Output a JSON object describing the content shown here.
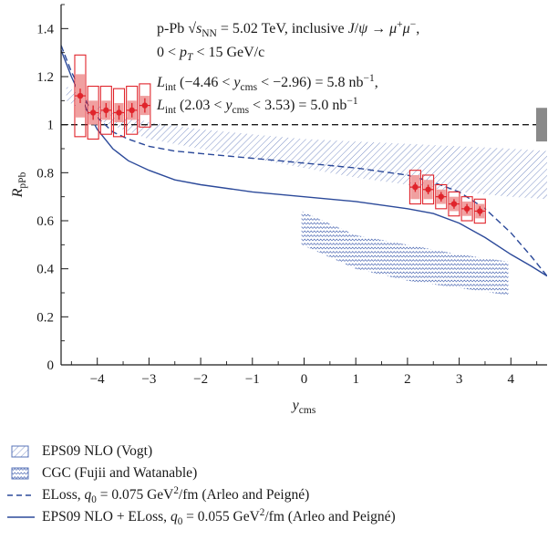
{
  "chart_data": {
    "type": "line",
    "x_axis": {
      "label": "y",
      "label_sub": "cms",
      "range": [
        -4.7,
        4.7
      ],
      "ticks": [
        -4,
        -3,
        -2,
        -1,
        0,
        1,
        2,
        3,
        4
      ],
      "tick_labels": [
        "−4",
        "−3",
        "−2",
        "−1",
        "0",
        "1",
        "2",
        "3",
        "4"
      ]
    },
    "y_axis": {
      "label": "R",
      "label_sub": "pPb",
      "range": [
        0,
        1.5
      ],
      "ticks": [
        0,
        0.2,
        0.4,
        0.6,
        0.8,
        1.0,
        1.2,
        1.4
      ],
      "tick_labels": [
        "0",
        "0.2",
        "0.4",
        "0.6",
        "0.8",
        "1",
        "1.2",
        "1.4"
      ]
    },
    "reference_line": 1.0,
    "global_uncertainty": [
      0.93,
      1.07
    ],
    "annotations": [
      {
        "parts": [
          {
            "t": "p-Pb "
          },
          {
            "t": "√s",
            "it": true
          },
          {
            "t": "NN",
            "sub": true
          },
          {
            "t": " = 5.02 TeV, inclusive "
          },
          {
            "t": "J",
            "it": true
          },
          {
            "t": "/"
          },
          {
            "t": "ψ",
            "it": true
          },
          {
            "t": " → "
          },
          {
            "t": "μ",
            "it": true
          },
          {
            "t": "+",
            "sup": true
          },
          {
            "t": "μ",
            "it": true
          },
          {
            "t": "−",
            "sup": true
          },
          {
            "t": ","
          }
        ]
      },
      {
        "parts": [
          {
            "t": "0 < "
          },
          {
            "t": "p",
            "it": true
          },
          {
            "t": "T",
            "sub": true,
            "it": true
          },
          {
            "t": " < 15 GeV/c"
          }
        ]
      },
      {
        "parts": [
          {
            "t": "L",
            "it": true
          },
          {
            "t": "int",
            "sub": true
          },
          {
            "t": " (−4.46 < "
          },
          {
            "t": "y",
            "it": true
          },
          {
            "t": "cms",
            "sub": true
          },
          {
            "t": " < −2.96) = 5.8 nb"
          },
          {
            "t": "−1",
            "sup": true
          },
          {
            "t": ","
          }
        ]
      },
      {
        "parts": [
          {
            "t": "L",
            "it": true
          },
          {
            "t": "int",
            "sub": true
          },
          {
            "t": " (2.03 < "
          },
          {
            "t": "y",
            "it": true
          },
          {
            "t": "cms",
            "sub": true
          },
          {
            "t": " < 3.53) = 5.0 nb"
          },
          {
            "t": "−1",
            "sup": true
          }
        ]
      }
    ],
    "data_backward": {
      "x": [
        -4.33,
        -4.08,
        -3.83,
        -3.58,
        -3.33,
        -3.08
      ],
      "y": [
        1.12,
        1.05,
        1.06,
        1.05,
        1.06,
        1.08
      ],
      "stat_err": [
        0.03,
        0.03,
        0.03,
        0.03,
        0.03,
        0.03
      ],
      "syst_err": [
        0.17,
        0.11,
        0.1,
        0.1,
        0.1,
        0.09
      ],
      "uncorr_err": [
        0.09,
        0.05,
        0.04,
        0.04,
        0.04,
        0.04
      ]
    },
    "data_forward": {
      "x": [
        2.15,
        2.4,
        2.65,
        2.9,
        3.15,
        3.4
      ],
      "y": [
        0.74,
        0.73,
        0.7,
        0.67,
        0.65,
        0.64
      ],
      "stat_err": [
        0.02,
        0.02,
        0.02,
        0.02,
        0.02,
        0.02
      ],
      "syst_err": [
        0.07,
        0.06,
        0.05,
        0.05,
        0.05,
        0.05
      ],
      "uncorr_err": [
        0.05,
        0.04,
        0.03,
        0.03,
        0.03,
        0.03
      ]
    },
    "bands": [
      {
        "name": "EPS09 NLO (Vogt)",
        "hatch": "diagonal",
        "x": [
          -4.6,
          -4.0,
          -3.5,
          -3.0,
          -2.0,
          -1.0,
          0.0,
          1.0,
          2.0,
          3.0,
          4.0,
          4.7
        ],
        "upper": [
          1.16,
          1.08,
          1.04,
          1.01,
          0.98,
          0.96,
          0.94,
          0.93,
          0.92,
          0.91,
          0.9,
          0.89
        ],
        "lower": [
          1.1,
          1.02,
          0.98,
          0.94,
          0.9,
          0.86,
          0.82,
          0.78,
          0.75,
          0.72,
          0.7,
          0.69
        ]
      },
      {
        "name": "CGC (Fujii and Watanable)",
        "hatch": "wave",
        "x": [
          -0.05,
          1.0,
          2.0,
          3.0,
          3.95
        ],
        "upper": [
          0.64,
          0.54,
          0.5,
          0.46,
          0.43
        ],
        "lower": [
          0.5,
          0.4,
          0.35,
          0.32,
          0.29
        ]
      }
    ],
    "series": [
      {
        "name": "ELoss, q0 = 0.075 GeV²/fm (Arleo and Peigné)",
        "style": "dashed",
        "x": [
          -4.7,
          -4.5,
          -4.2,
          -4.0,
          -3.7,
          -3.4,
          -3.0,
          -2.5,
          -2.0,
          -1.0,
          0.0,
          1.0,
          2.0,
          2.5,
          3.0,
          3.5,
          4.0,
          4.4,
          4.7
        ],
        "y": [
          1.33,
          1.22,
          1.09,
          1.03,
          0.97,
          0.94,
          0.91,
          0.89,
          0.88,
          0.86,
          0.84,
          0.82,
          0.79,
          0.76,
          0.72,
          0.65,
          0.55,
          0.45,
          0.37
        ]
      },
      {
        "name": "EPS09 NLO + ELoss, q0 = 0.055 GeV²/fm (Arleo and Peigné)",
        "style": "solid",
        "x": [
          -4.7,
          -4.5,
          -4.2,
          -4.0,
          -3.7,
          -3.4,
          -3.0,
          -2.5,
          -2.0,
          -1.0,
          0.0,
          1.0,
          2.0,
          2.5,
          3.0,
          3.5,
          4.0,
          4.4,
          4.7
        ],
        "y": [
          1.31,
          1.2,
          1.06,
          0.98,
          0.9,
          0.85,
          0.81,
          0.77,
          0.75,
          0.72,
          0.7,
          0.68,
          0.65,
          0.63,
          0.59,
          0.53,
          0.46,
          0.41,
          0.37
        ]
      }
    ],
    "legend": [
      {
        "symbol": "hatch-diagonal",
        "parts": [
          {
            "t": "EPS09 NLO (Vogt)"
          }
        ]
      },
      {
        "symbol": "hatch-wave",
        "parts": [
          {
            "t": "CGC (Fujii and Watanable)"
          }
        ]
      },
      {
        "symbol": "dashed",
        "parts": [
          {
            "t": "ELoss, "
          },
          {
            "t": "q",
            "it": true
          },
          {
            "t": "0",
            "sub": true
          },
          {
            "t": " = 0.075 GeV"
          },
          {
            "t": "2",
            "sup": true
          },
          {
            "t": "/fm (Arleo and Peigné)"
          }
        ]
      },
      {
        "symbol": "solid",
        "parts": [
          {
            "t": "EPS09 NLO + ELoss, "
          },
          {
            "t": "q",
            "it": true
          },
          {
            "t": "0",
            "sub": true
          },
          {
            "t": " = 0.055 GeV"
          },
          {
            "t": "2",
            "sup": true
          },
          {
            "t": "/fm (Arleo and Peigné)"
          }
        ]
      }
    ],
    "colors": {
      "curve": "#2c4a9a",
      "data": "#e0242b",
      "data_fill": "#f0a0a0",
      "global_box": "#8a8a8a",
      "band_diag": "#5a74b8",
      "band_wave": "#5a74b8"
    }
  }
}
